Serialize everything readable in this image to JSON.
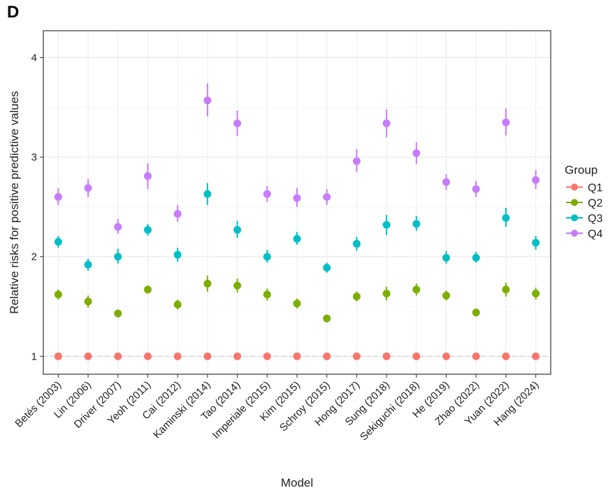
{
  "panel_label": "D",
  "chart_data": {
    "type": "scatter",
    "title": "",
    "xlabel": "Model",
    "ylabel": "Relative risks for positive predictive values",
    "ylim": [
      0.82,
      4.27
    ],
    "yticks": [
      1,
      2,
      3,
      4
    ],
    "grid": true,
    "legend_title": "Group",
    "legend_position": "right",
    "reference_line": 1,
    "categories": [
      "Betés (2003)",
      "Lin (2006)",
      "Driver (2007)",
      "Yeoh (2011)",
      "Cai (2012)",
      "Kaminski (2014)",
      "Tao (2014)",
      "Imperiale (2015)",
      "Kim (2015)",
      "Schroy (2015)",
      "Hong (2017)",
      "Sung (2018)",
      "Sekiguchi (2018)",
      "He (2019)",
      "Zhao (2022)",
      "Yuan (2022)",
      "Hang (2024)"
    ],
    "series": [
      {
        "name": "Q1",
        "color": "#F8766D",
        "values": [
          1,
          1,
          1,
          1,
          1,
          1,
          1,
          1,
          1,
          1,
          1,
          1,
          1,
          1,
          1,
          1,
          1
        ],
        "lower": [
          1,
          1,
          1,
          1,
          1,
          1,
          1,
          1,
          1,
          1,
          1,
          1,
          1,
          1,
          1,
          1,
          1
        ],
        "upper": [
          1,
          1,
          1,
          1,
          1,
          1,
          1,
          1,
          1,
          1,
          1,
          1,
          1,
          1,
          1,
          1,
          1
        ]
      },
      {
        "name": "Q2",
        "color": "#7CAE00",
        "values": [
          1.62,
          1.55,
          1.43,
          1.67,
          1.52,
          1.73,
          1.71,
          1.62,
          1.53,
          1.38,
          1.6,
          1.63,
          1.67,
          1.61,
          1.44,
          1.67,
          1.63
        ],
        "lower": [
          1.57,
          1.49,
          1.39,
          1.63,
          1.47,
          1.65,
          1.64,
          1.56,
          1.48,
          1.34,
          1.55,
          1.56,
          1.61,
          1.56,
          1.4,
          1.6,
          1.57
        ],
        "upper": [
          1.67,
          1.61,
          1.47,
          1.71,
          1.57,
          1.81,
          1.78,
          1.68,
          1.58,
          1.42,
          1.65,
          1.7,
          1.73,
          1.66,
          1.48,
          1.74,
          1.69
        ]
      },
      {
        "name": "Q3",
        "color": "#00BFC4",
        "values": [
          2.15,
          1.92,
          2.0,
          2.27,
          2.02,
          2.63,
          2.27,
          2.0,
          2.18,
          1.89,
          2.13,
          2.32,
          2.33,
          1.99,
          1.99,
          2.39,
          2.14
        ],
        "lower": [
          2.09,
          1.86,
          1.93,
          2.21,
          1.95,
          2.52,
          2.19,
          1.94,
          2.12,
          1.84,
          2.06,
          2.22,
          2.26,
          1.93,
          1.94,
          2.3,
          2.07
        ],
        "upper": [
          2.21,
          1.98,
          2.08,
          2.33,
          2.09,
          2.74,
          2.36,
          2.07,
          2.25,
          1.94,
          2.2,
          2.42,
          2.41,
          2.06,
          2.05,
          2.49,
          2.21
        ]
      },
      {
        "name": "Q4",
        "color": "#C77CFF",
        "values": [
          2.6,
          2.69,
          2.3,
          2.81,
          2.43,
          3.57,
          3.34,
          2.63,
          2.59,
          2.6,
          2.96,
          3.34,
          3.04,
          2.75,
          2.68,
          3.35,
          2.77
        ],
        "lower": [
          2.52,
          2.6,
          2.23,
          2.68,
          2.35,
          3.41,
          3.21,
          2.55,
          2.5,
          2.52,
          2.85,
          3.2,
          2.93,
          2.67,
          2.6,
          3.22,
          2.68
        ],
        "upper": [
          2.69,
          2.78,
          2.38,
          2.94,
          2.52,
          3.74,
          3.47,
          2.71,
          2.69,
          2.68,
          3.08,
          3.48,
          3.15,
          2.83,
          2.76,
          3.49,
          2.87
        ]
      }
    ]
  }
}
